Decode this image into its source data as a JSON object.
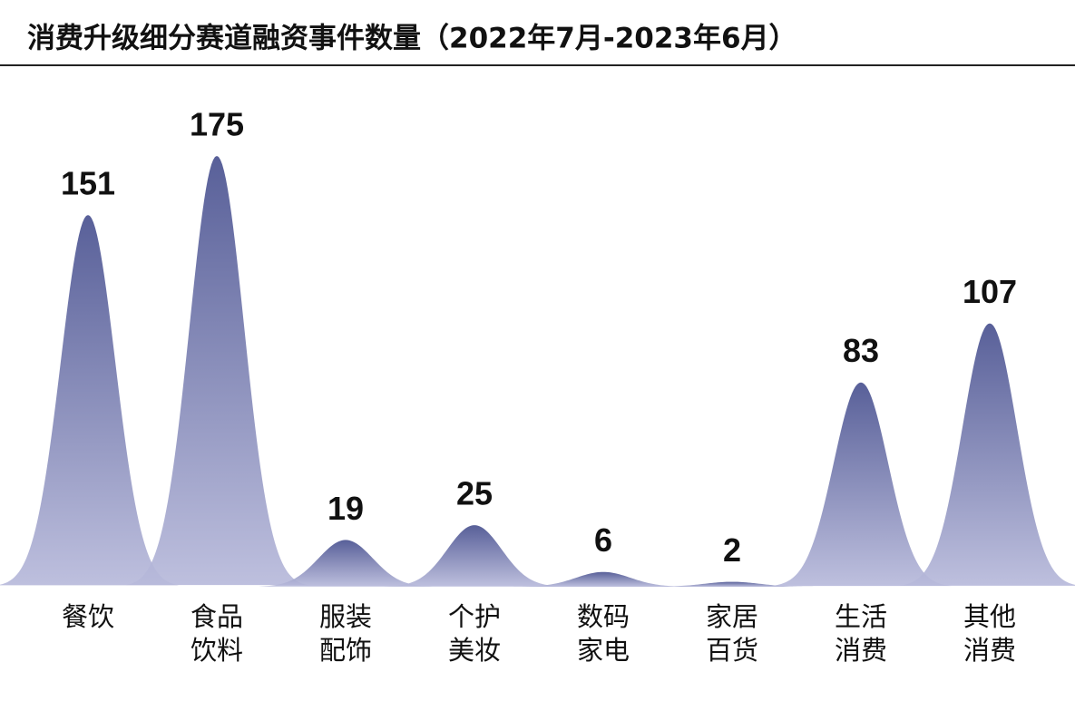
{
  "chart_data": {
    "type": "bell",
    "title": "消费升级细分赛道融资事件数量（2022年7月-2023年6月）",
    "categories": [
      [
        "餐饮"
      ],
      [
        "食品",
        "饮料"
      ],
      [
        "服装",
        "配饰"
      ],
      [
        "个护",
        "美妆"
      ],
      [
        "数码",
        "家电"
      ],
      [
        "家居",
        "百货"
      ],
      [
        "生活",
        "消费"
      ],
      [
        "其他",
        "消费"
      ]
    ],
    "values": [
      151,
      175,
      19,
      25,
      6,
      2,
      83,
      107
    ],
    "color_top": "#4a5290",
    "color_bottom": "#b8badb"
  }
}
